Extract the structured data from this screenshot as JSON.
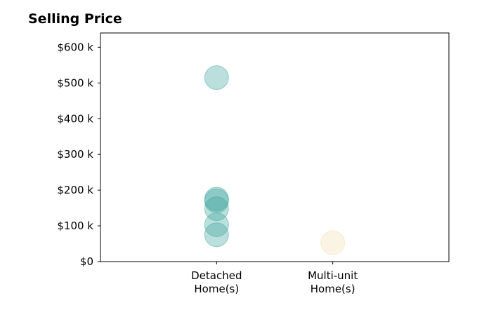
{
  "chart_data": {
    "type": "scatter",
    "title": "Selling Price",
    "xlabel": "",
    "ylabel": "",
    "categories": [
      "Detached\nHome(s)",
      "Multi-unit\nHome(s)"
    ],
    "xlim": [
      -1,
      2
    ],
    "ylim": [
      0,
      640
    ],
    "y_ticks": [
      0,
      100,
      200,
      300,
      400,
      500,
      600
    ],
    "y_tick_labels": [
      "$0",
      "$100 k",
      "$200 k",
      "$300 k",
      "$400 k",
      "$500 k",
      "$600 k"
    ],
    "grid": false,
    "legend": "none",
    "series": [
      {
        "category": "Detached\nHome(s)",
        "color": "#3aa39a",
        "values": [
          515,
          175,
          170,
          148,
          103,
          75
        ]
      },
      {
        "category": "Multi-unit\nHome(s)",
        "color": "#f3ddb0",
        "values": [
          53
        ]
      }
    ]
  }
}
